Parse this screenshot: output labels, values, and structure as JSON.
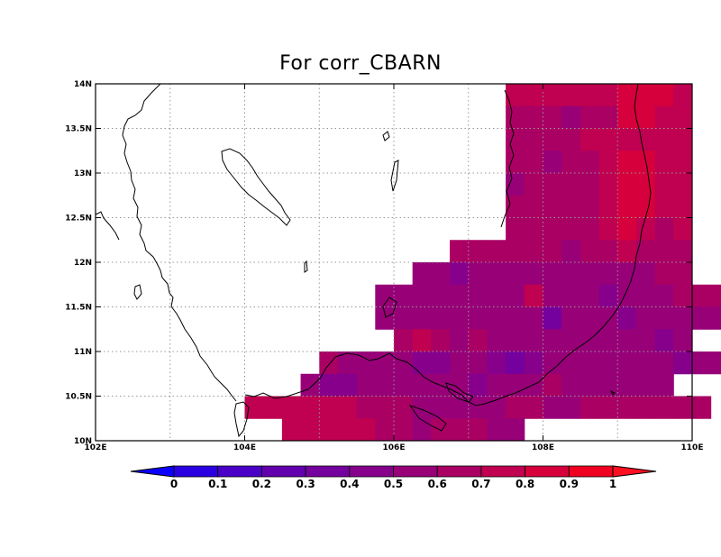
{
  "title": "For corr_CBARN",
  "map": {
    "lon_range": [
      102,
      110
    ],
    "lat_range": [
      10,
      14
    ],
    "x_ticks": [
      "102E",
      "104E",
      "106E",
      "108E",
      "110E"
    ],
    "y_ticks": [
      "10N",
      "10.5N",
      "11N",
      "11.5N",
      "12N",
      "12.5N",
      "13N",
      "13.5N",
      "14N"
    ],
    "grid": "dotted",
    "cell_size_deg": 0.25
  },
  "colorbar": {
    "labels": [
      "0",
      "0.1",
      "0.2",
      "0.3",
      "0.4",
      "0.5",
      "0.6",
      "0.7",
      "0.8",
      "0.9",
      "1"
    ],
    "colors": [
      "#0c00ff",
      "#2a00e0",
      "#4a00c6",
      "#6200ae",
      "#74009e",
      "#86008c",
      "#980078",
      "#aa0064",
      "#c00050",
      "#d6003c",
      "#f00020",
      "#ff1020"
    ]
  },
  "chart_data": {
    "type": "heatmap",
    "title": "For corr_CBARN",
    "xlabel": "",
    "ylabel": "",
    "xlim": [
      102,
      110
    ],
    "ylim": [
      10,
      14
    ],
    "rows": [
      {
        "lat": 13.875,
        "lon_start": 107.5,
        "values": [
          0.7,
          0.7,
          0.7,
          0.7,
          0.7,
          0.75,
          0.85,
          0.85,
          0.85,
          0.75
        ]
      },
      {
        "lat": 13.625,
        "lon_start": 107.5,
        "values": [
          0.65,
          0.65,
          0.6,
          0.55,
          0.6,
          0.65,
          0.8,
          0.8,
          0.75,
          0.7
        ]
      },
      {
        "lat": 13.375,
        "lon_start": 107.5,
        "values": [
          0.65,
          0.65,
          0.65,
          0.65,
          0.7,
          0.7,
          0.75,
          0.7,
          0.7,
          0.7
        ]
      },
      {
        "lat": 13.125,
        "lon_start": 107.5,
        "values": [
          0.6,
          0.6,
          0.55,
          0.6,
          0.6,
          0.7,
          0.8,
          0.8,
          0.75,
          0.7
        ]
      },
      {
        "lat": 12.875,
        "lon_start": 107.5,
        "values": [
          0.55,
          0.6,
          0.6,
          0.6,
          0.6,
          0.7,
          0.8,
          0.8,
          0.75,
          0.7
        ]
      },
      {
        "lat": 12.625,
        "lon_start": 107.5,
        "values": [
          0.6,
          0.6,
          0.6,
          0.6,
          0.65,
          0.7,
          0.8,
          0.8,
          0.75,
          0.7
        ]
      },
      {
        "lat": 12.375,
        "lon_start": 107.5,
        "values": [
          0.6,
          0.6,
          0.6,
          0.6,
          0.6,
          0.7,
          0.8,
          0.7,
          0.65,
          0.7
        ]
      },
      {
        "lat": 12.125,
        "lon_start": 106.75,
        "values": [
          0.6,
          0.6,
          0.6,
          0.6,
          0.6,
          0.6,
          0.55,
          0.6,
          0.6,
          0.7,
          0.6,
          0.6,
          0.65
        ]
      },
      {
        "lat": 11.875,
        "lon_start": 106.25,
        "values": [
          0.5,
          0.5,
          0.45,
          0.5,
          0.55,
          0.55,
          0.5,
          0.55,
          0.55,
          0.55,
          0.55,
          0.55,
          0.55,
          0.6,
          0.65
        ]
      },
      {
        "lat": 11.625,
        "lon_start": 105.75,
        "values": [
          0.55,
          0.55,
          0.55,
          0.55,
          0.5,
          0.55,
          0.55,
          0.55,
          0.7,
          0.55,
          0.55,
          0.55,
          0.45,
          0.55,
          0.5,
          0.55,
          0.6,
          0.65,
          0.6,
          0.6,
          0.65
        ]
      },
      {
        "lat": 11.375,
        "lon_start": 105.75,
        "values": [
          0.55,
          0.55,
          0.55,
          0.55,
          0.5,
          0.55,
          0.5,
          0.55,
          0.55,
          0.3,
          0.5,
          0.55,
          0.55,
          0.45,
          0.55,
          0.55,
          0.55,
          0.55,
          0.55,
          0.55,
          0.6
        ]
      },
      {
        "lat": 11.125,
        "lon_start": 106.0,
        "values": [
          0.6,
          0.75,
          0.65,
          0.55,
          0.6,
          0.55,
          0.55,
          0.55,
          0.55,
          0.55,
          0.55,
          0.55,
          0.55,
          0.55,
          0.45,
          0.55
        ]
      },
      {
        "lat": 10.875,
        "lon_start": 105.0,
        "values": [
          0.6,
          0.55,
          0.55,
          0.5,
          0.5,
          0.45,
          0.45,
          0.5,
          0.5,
          0.45,
          0.35,
          0.4,
          0.55,
          0.55,
          0.55,
          0.55,
          0.55,
          0.5,
          0.5,
          0.45,
          0.55,
          0.55,
          0.55,
          0.45
        ]
      },
      {
        "lat": 10.625,
        "lon_start": 104.75,
        "values": [
          0.55,
          0.45,
          0.45,
          0.55,
          0.55,
          0.5,
          0.5,
          0.5,
          0.5,
          0.45,
          0.55,
          0.5,
          0.55,
          0.6,
          0.55,
          0.55,
          0.55,
          0.55,
          0.55,
          0.55
        ]
      },
      {
        "lat": 10.375,
        "lon_start": 104.0,
        "values": [
          0.75,
          0.75,
          0.75,
          0.75,
          0.75,
          0.7,
          0.65,
          0.6,
          0.6,
          0.55,
          0.55,
          0.55,
          0.55,
          0.55,
          0.6,
          0.6,
          0.55,
          0.55,
          0.6,
          0.6,
          0.6,
          0.6,
          0.6,
          0.6,
          0.6
        ]
      },
      {
        "lat": 10.125,
        "lon_start": 104.5,
        "values": [
          0.7,
          0.7,
          0.75,
          0.7,
          0.7,
          0.6,
          0.6,
          0.5,
          0.6,
          0.65,
          0.6,
          0.55,
          0.55
        ]
      }
    ]
  }
}
